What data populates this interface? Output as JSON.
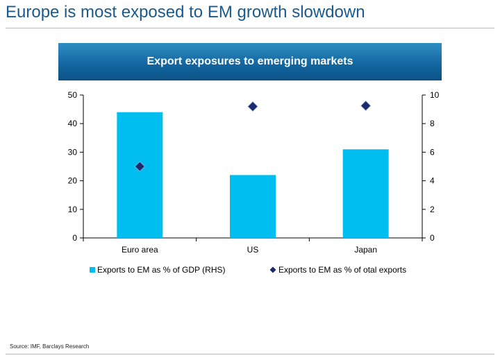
{
  "page": {
    "title": "Europe is most exposed to EM growth slowdown",
    "source": "Source: IMF, Barclays Research"
  },
  "chart_data": {
    "type": "bar",
    "title": "Export exposures to emerging markets",
    "categories": [
      "Euro area",
      "US",
      "Japan"
    ],
    "series": [
      {
        "name": "Exports to EM as % of GDP (RHS)",
        "type": "bar",
        "axis": "left",
        "values": [
          44,
          22,
          31
        ],
        "color": "#00bff0"
      },
      {
        "name": "Exports to EM as % of otal exports",
        "type": "scatter",
        "marker": "diamond",
        "axis": "right",
        "values": [
          5.0,
          9.2,
          9.25
        ],
        "color": "#1a2a6c"
      }
    ],
    "y_left": {
      "ylim": [
        0,
        50
      ],
      "ticks": [
        "0",
        "10",
        "20",
        "30",
        "40",
        "50"
      ]
    },
    "y_right": {
      "ylim": [
        0,
        10
      ],
      "ticks": [
        "0",
        "2",
        "4",
        "6",
        "8",
        "10"
      ]
    },
    "grid": false,
    "legend": "bottom"
  }
}
